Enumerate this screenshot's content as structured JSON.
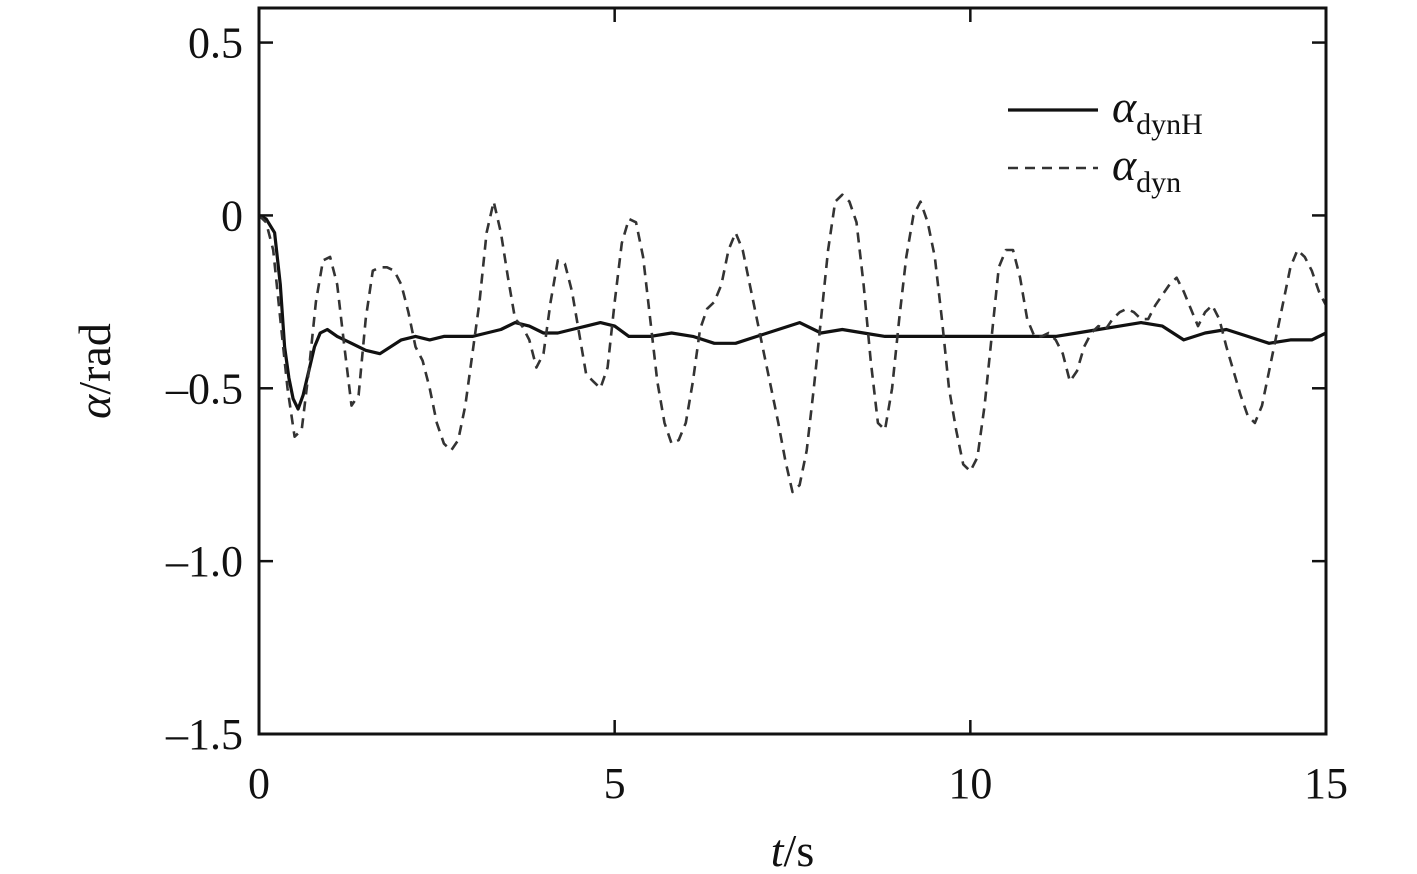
{
  "chart_data": {
    "type": "line",
    "title": "",
    "xlabel": {
      "var": "t",
      "unit": "/s"
    },
    "ylabel": {
      "var": "α",
      "unit": "/rad"
    },
    "xlim": [
      0,
      15
    ],
    "ylim": [
      -1.5,
      0.6
    ],
    "xticks": [
      0,
      5,
      10,
      15
    ],
    "xtick_labels": [
      "0",
      "5",
      "10",
      "15"
    ],
    "yticks": [
      0.5,
      0,
      -0.5,
      -1.0,
      -1.5
    ],
    "ytick_labels": [
      "0.5",
      "0",
      "–0.5",
      "–1.0",
      "–1.5"
    ],
    "grid": false,
    "legend": "top-right",
    "series": [
      {
        "name": "α_dynH",
        "legend_main": "α",
        "legend_sub": "dynH",
        "style": "solid",
        "color": "#111111",
        "x": [
          0,
          0.1,
          0.22,
          0.3,
          0.36,
          0.42,
          0.48,
          0.55,
          0.62,
          0.7,
          0.78,
          0.86,
          0.96,
          1.1,
          1.3,
          1.5,
          1.7,
          1.85,
          2.0,
          2.2,
          2.4,
          2.6,
          2.8,
          3.0,
          3.2,
          3.4,
          3.6,
          3.8,
          4.0,
          4.2,
          4.4,
          4.6,
          4.8,
          5.0,
          5.2,
          5.5,
          5.8,
          6.1,
          6.4,
          6.7,
          7.0,
          7.3,
          7.6,
          7.9,
          8.2,
          8.5,
          8.8,
          9.1,
          9.4,
          9.7,
          10.0,
          10.3,
          10.6,
          10.9,
          11.2,
          11.5,
          11.8,
          12.1,
          12.4,
          12.7,
          13.0,
          13.3,
          13.6,
          13.9,
          14.2,
          14.5,
          14.8,
          15.0
        ],
        "y": [
          0,
          -0.01,
          -0.05,
          -0.2,
          -0.38,
          -0.47,
          -0.53,
          -0.56,
          -0.52,
          -0.45,
          -0.38,
          -0.34,
          -0.33,
          -0.35,
          -0.37,
          -0.39,
          -0.4,
          -0.38,
          -0.36,
          -0.35,
          -0.36,
          -0.35,
          -0.35,
          -0.35,
          -0.34,
          -0.33,
          -0.31,
          -0.32,
          -0.34,
          -0.34,
          -0.33,
          -0.32,
          -0.31,
          -0.32,
          -0.35,
          -0.35,
          -0.34,
          -0.35,
          -0.37,
          -0.37,
          -0.35,
          -0.33,
          -0.31,
          -0.34,
          -0.33,
          -0.34,
          -0.35,
          -0.35,
          -0.35,
          -0.35,
          -0.35,
          -0.35,
          -0.35,
          -0.35,
          -0.35,
          -0.34,
          -0.33,
          -0.32,
          -0.31,
          -0.32,
          -0.36,
          -0.34,
          -0.33,
          -0.35,
          -0.37,
          -0.36,
          -0.36,
          -0.34
        ]
      },
      {
        "name": "α_dyn",
        "legend_main": "α",
        "legend_sub": "dyn",
        "style": "dashed",
        "color": "#333333",
        "x": [
          0,
          0.1,
          0.2,
          0.3,
          0.4,
          0.5,
          0.6,
          0.7,
          0.8,
          0.9,
          1.0,
          1.1,
          1.2,
          1.3,
          1.4,
          1.5,
          1.6,
          1.7,
          1.8,
          1.9,
          2.0,
          2.1,
          2.2,
          2.3,
          2.4,
          2.5,
          2.6,
          2.7,
          2.8,
          2.9,
          3.0,
          3.1,
          3.2,
          3.3,
          3.4,
          3.5,
          3.6,
          3.7,
          3.8,
          3.9,
          4.0,
          4.1,
          4.2,
          4.3,
          4.4,
          4.5,
          4.6,
          4.7,
          4.8,
          4.9,
          5.0,
          5.1,
          5.2,
          5.3,
          5.4,
          5.5,
          5.6,
          5.7,
          5.8,
          5.9,
          6.0,
          6.1,
          6.2,
          6.3,
          6.4,
          6.5,
          6.6,
          6.7,
          6.8,
          6.9,
          7.0,
          7.1,
          7.2,
          7.3,
          7.4,
          7.5,
          7.6,
          7.7,
          7.8,
          7.9,
          8.0,
          8.1,
          8.2,
          8.3,
          8.4,
          8.5,
          8.6,
          8.7,
          8.8,
          8.9,
          9.0,
          9.1,
          9.2,
          9.3,
          9.4,
          9.5,
          9.6,
          9.7,
          9.8,
          9.9,
          10.0,
          10.1,
          10.2,
          10.3,
          10.4,
          10.5,
          10.6,
          10.7,
          10.8,
          10.9,
          11.0,
          11.1,
          11.2,
          11.3,
          11.4,
          11.5,
          11.6,
          11.7,
          11.8,
          11.9,
          12.0,
          12.1,
          12.2,
          12.3,
          12.4,
          12.5,
          12.6,
          12.7,
          12.8,
          12.9,
          13.0,
          13.1,
          13.2,
          13.3,
          13.4,
          13.5,
          13.6,
          13.7,
          13.8,
          13.9,
          14.0,
          14.1,
          14.2,
          14.3,
          14.4,
          14.5,
          14.6,
          14.7,
          14.8,
          14.9,
          15.0
        ],
        "y": [
          0,
          -0.02,
          -0.1,
          -0.3,
          -0.5,
          -0.64,
          -0.62,
          -0.45,
          -0.25,
          -0.13,
          -0.12,
          -0.2,
          -0.38,
          -0.55,
          -0.52,
          -0.3,
          -0.16,
          -0.15,
          -0.15,
          -0.16,
          -0.2,
          -0.28,
          -0.38,
          -0.42,
          -0.5,
          -0.6,
          -0.66,
          -0.68,
          -0.65,
          -0.55,
          -0.4,
          -0.25,
          -0.05,
          0.04,
          -0.05,
          -0.18,
          -0.3,
          -0.32,
          -0.36,
          -0.44,
          -0.4,
          -0.25,
          -0.13,
          -0.14,
          -0.22,
          -0.34,
          -0.46,
          -0.48,
          -0.5,
          -0.44,
          -0.25,
          -0.08,
          -0.01,
          -0.02,
          -0.12,
          -0.3,
          -0.48,
          -0.6,
          -0.66,
          -0.65,
          -0.6,
          -0.48,
          -0.33,
          -0.27,
          -0.25,
          -0.2,
          -0.1,
          -0.05,
          -0.1,
          -0.2,
          -0.3,
          -0.4,
          -0.5,
          -0.6,
          -0.71,
          -0.8,
          -0.78,
          -0.68,
          -0.5,
          -0.3,
          -0.1,
          0.04,
          0.06,
          0.04,
          -0.02,
          -0.2,
          -0.42,
          -0.6,
          -0.62,
          -0.5,
          -0.3,
          -0.12,
          0.0,
          0.04,
          -0.02,
          -0.12,
          -0.3,
          -0.5,
          -0.62,
          -0.72,
          -0.74,
          -0.7,
          -0.55,
          -0.35,
          -0.15,
          -0.1,
          -0.1,
          -0.18,
          -0.3,
          -0.35,
          -0.35,
          -0.34,
          -0.36,
          -0.4,
          -0.48,
          -0.45,
          -0.38,
          -0.34,
          -0.32,
          -0.33,
          -0.3,
          -0.28,
          -0.27,
          -0.28,
          -0.3,
          -0.3,
          -0.26,
          -0.23,
          -0.2,
          -0.18,
          -0.22,
          -0.27,
          -0.32,
          -0.28,
          -0.26,
          -0.3,
          -0.38,
          -0.45,
          -0.52,
          -0.58,
          -0.6,
          -0.55,
          -0.45,
          -0.35,
          -0.25,
          -0.15,
          -0.1,
          -0.12,
          -0.16,
          -0.22,
          -0.26
        ]
      }
    ]
  }
}
